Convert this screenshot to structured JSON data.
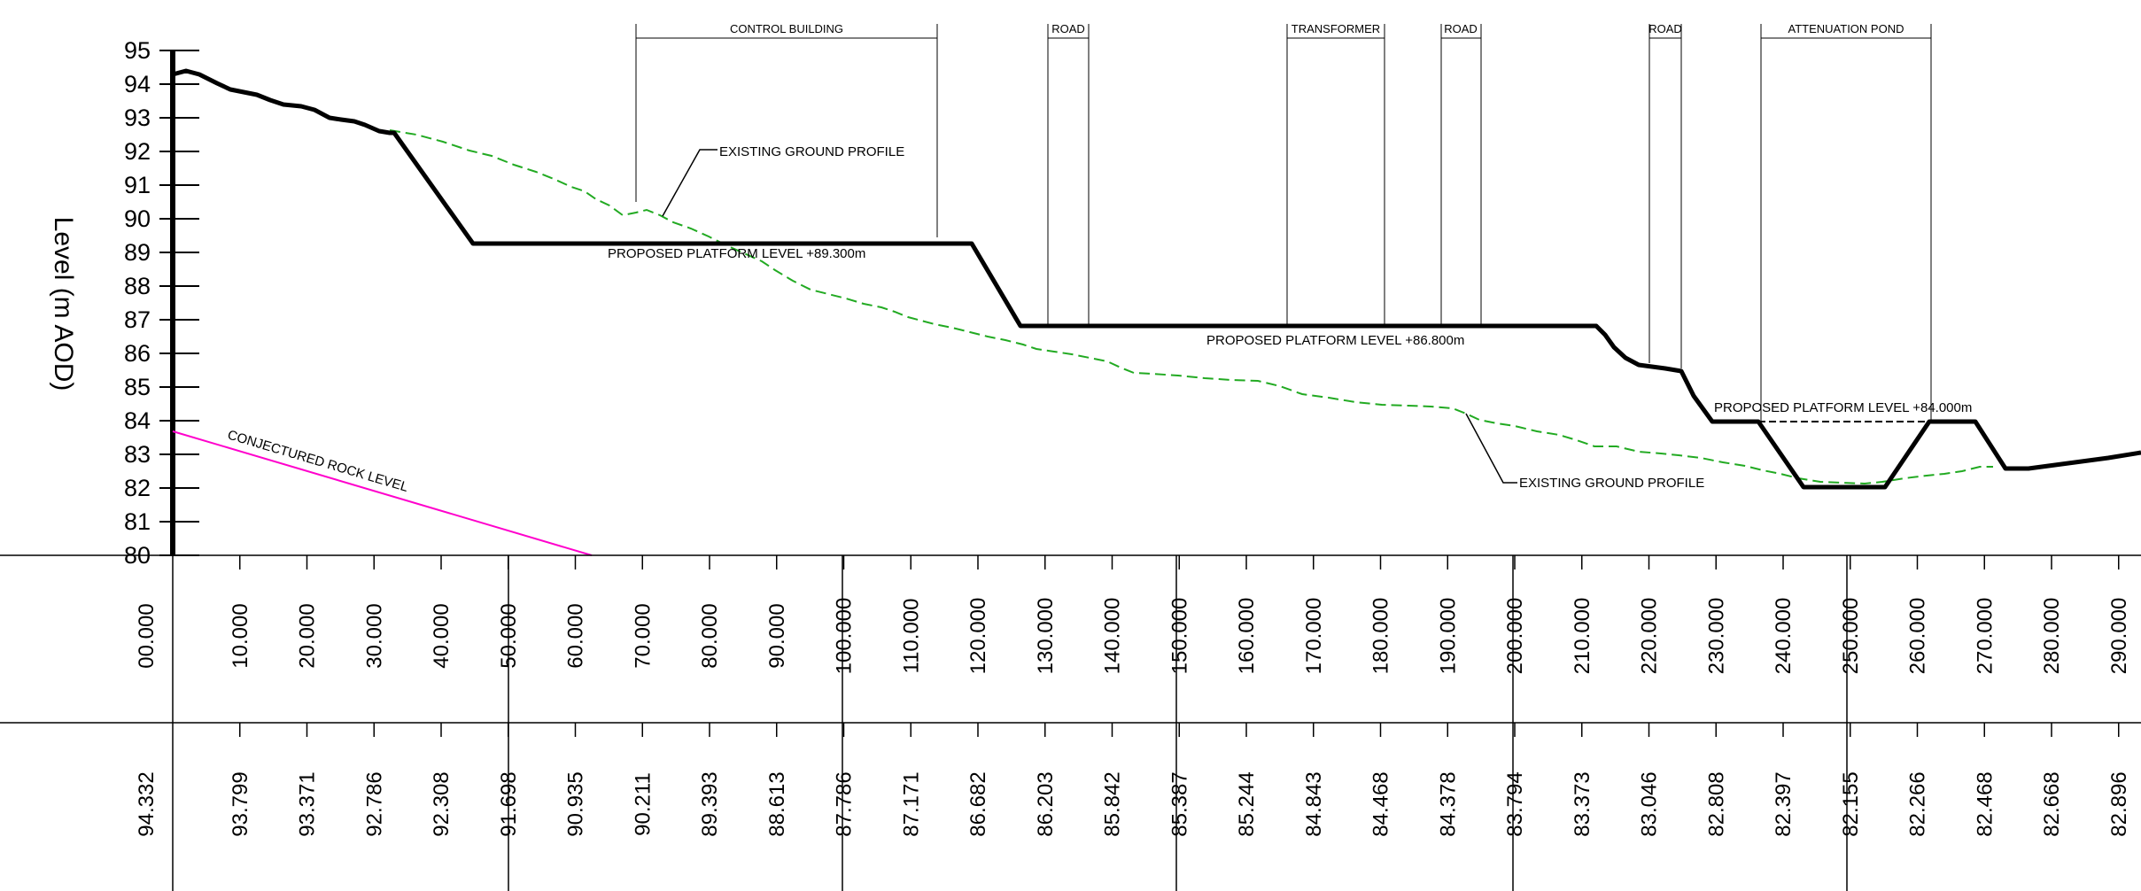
{
  "y_axis": {
    "label": "Level (m AOD)",
    "ticks": [
      "80",
      "81",
      "82",
      "83",
      "84",
      "85",
      "86",
      "87",
      "88",
      "89",
      "90",
      "91",
      "92",
      "93",
      "94",
      "95"
    ]
  },
  "chainages": [
    "00.000",
    "10.000",
    "20.000",
    "30.000",
    "40.000",
    "50.000",
    "60.000",
    "70.000",
    "80.000",
    "90.000",
    "100.000",
    "110.000",
    "120.000",
    "130.000",
    "140.000",
    "150.000",
    "160.000",
    "170.000",
    "180.000",
    "190.000",
    "200.000",
    "210.000",
    "220.000",
    "230.000",
    "240.000",
    "250.000",
    "260.000",
    "270.000",
    "280.000",
    "290.000"
  ],
  "ground_levels": [
    "94.332",
    "93.799",
    "93.371",
    "92.786",
    "92.308",
    "91.698",
    "90.935",
    "90.211",
    "89.393",
    "88.613",
    "87.786",
    "87.171",
    "86.682",
    "86.203",
    "85.842",
    "85.387",
    "85.244",
    "84.843",
    "84.468",
    "84.378",
    "83.794",
    "83.373",
    "83.046",
    "82.808",
    "82.397",
    "82.155",
    "82.266",
    "82.468",
    "82.668",
    "82.896"
  ],
  "zones": [
    {
      "label": "CONTROL BUILDING"
    },
    {
      "label": "ROAD"
    },
    {
      "label": "TRANSFORMER"
    },
    {
      "label": "ROAD"
    },
    {
      "label": "ROAD"
    },
    {
      "label": "ATTENUATION POND"
    }
  ],
  "annotations": {
    "existing_ground_1": "EXISTING GROUND PROFILE",
    "existing_ground_2": "EXISTING GROUND PROFILE",
    "platform_1": "PROPOSED PLATFORM LEVEL +89.300m",
    "platform_2": "PROPOSED PLATFORM LEVEL +86.800m",
    "platform_3": "PROPOSED PLATFORM LEVEL +84.000m",
    "rock": "CONJECTURED ROCK LEVEL"
  },
  "colors": {
    "existing_ground": "#22aa22",
    "rock": "#ff00cc",
    "proposed": "#000000"
  }
}
